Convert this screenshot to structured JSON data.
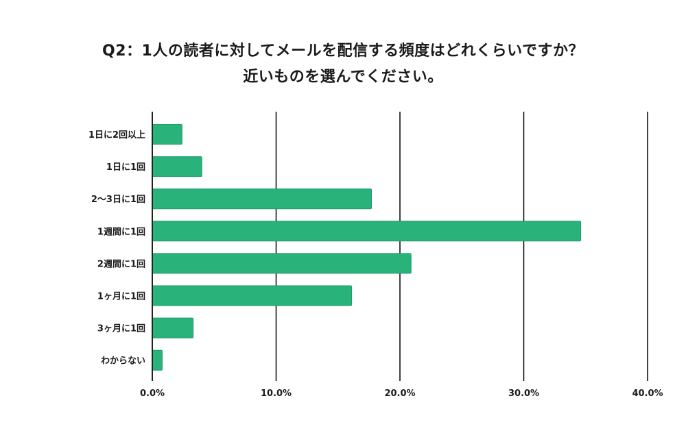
{
  "title_lines": [
    "Q2：1人の読者に対してメールを配信する頻度はどれくらいですか？",
    "近いものを選んでください。"
  ],
  "colors": {
    "bar_fill": "#29b37b",
    "bar_stroke": "#1f9a68",
    "gridline": "#000000",
    "text": "#1a1a1a"
  },
  "chart_data": {
    "type": "bar",
    "orientation": "horizontal",
    "categories": [
      "1日に2回以上",
      "1日に1回",
      "2〜3日に1回",
      "1週間に1回",
      "2週間に1回",
      "1ヶ月に1回",
      "3ヶ月に1回",
      "わからない"
    ],
    "values": [
      2.4,
      4.0,
      17.7,
      34.6,
      20.9,
      16.1,
      3.3,
      0.8
    ],
    "xlim": [
      0,
      40
    ],
    "xticks": [
      0,
      10,
      20,
      30,
      40
    ],
    "xtick_labels": [
      "0.0%",
      "10.0%",
      "20.0%",
      "30.0%",
      "40.0%"
    ],
    "grid": "vertical",
    "legend": "none"
  }
}
